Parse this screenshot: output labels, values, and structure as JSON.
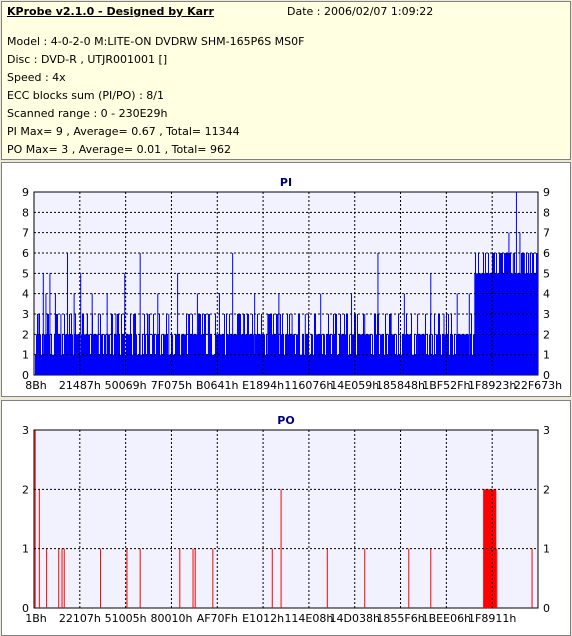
{
  "info": {
    "title": "KProbe v2.1.0 - Designed by Karr",
    "date": "Date : 2006/02/07 1:09:22",
    "model": "Model : 4-0-2-0 M:LITE-ON DVDRW SHM-165P6S MS0F",
    "disc": "Disc : DVD-R , UTJR001001 []",
    "speed": "Speed : 4x",
    "ecc": "ECC blocks sum (PI/PO) : 8/1",
    "range": "Scanned range : 0 - 230E29h",
    "pi_stats": "PI Max= 9 , Average= 0.67 , Total= 11344",
    "po_stats": "PO Max= 3 , Average= 0.01 , Total= 962"
  },
  "colors": {
    "pi": "#0000ff",
    "po": "#ff0000",
    "plot_bg": "#f2f2ff",
    "grid": "#000000"
  },
  "chart_data": [
    {
      "type": "bar",
      "title": "PI",
      "ylim": [
        0,
        9
      ],
      "yticks": [
        0,
        1,
        2,
        3,
        4,
        5,
        6,
        7,
        8,
        9
      ],
      "xlim": [
        0,
        2289267
      ],
      "x_tick_labels": [
        "8Bh",
        "21487h",
        "50069h",
        "7F075h",
        "B0641h",
        "E1894h",
        "116076h",
        "14E059h",
        "185848h",
        "1BF52Fh",
        "1F8923h",
        "22F673h"
      ],
      "grid": true,
      "baseline_level": 2,
      "peaks": [
        {
          "x": 20000,
          "y": 3
        },
        {
          "x": 40000,
          "y": 5
        },
        {
          "x": 52000,
          "y": 4
        },
        {
          "x": 70000,
          "y": 5
        },
        {
          "x": 95000,
          "y": 4
        },
        {
          "x": 120000,
          "y": 3
        },
        {
          "x": 150000,
          "y": 6
        },
        {
          "x": 180000,
          "y": 4
        },
        {
          "x": 210000,
          "y": 5
        },
        {
          "x": 240000,
          "y": 3
        },
        {
          "x": 262000,
          "y": 4
        },
        {
          "x": 290000,
          "y": 3
        },
        {
          "x": 330000,
          "y": 4
        },
        {
          "x": 370000,
          "y": 3
        },
        {
          "x": 410000,
          "y": 5
        },
        {
          "x": 450000,
          "y": 3
        },
        {
          "x": 480000,
          "y": 6
        },
        {
          "x": 520000,
          "y": 3
        },
        {
          "x": 560000,
          "y": 4
        },
        {
          "x": 610000,
          "y": 3
        },
        {
          "x": 650000,
          "y": 5
        },
        {
          "x": 700000,
          "y": 3
        },
        {
          "x": 740000,
          "y": 4
        },
        {
          "x": 790000,
          "y": 3
        },
        {
          "x": 840000,
          "y": 4
        },
        {
          "x": 900000,
          "y": 6
        },
        {
          "x": 950000,
          "y": 3
        },
        {
          "x": 1000000,
          "y": 4
        },
        {
          "x": 1060000,
          "y": 3
        },
        {
          "x": 1110000,
          "y": 4
        },
        {
          "x": 1170000,
          "y": 3
        },
        {
          "x": 1230000,
          "y": 3
        },
        {
          "x": 1300000,
          "y": 4
        },
        {
          "x": 1370000,
          "y": 3
        },
        {
          "x": 1440000,
          "y": 4
        },
        {
          "x": 1500000,
          "y": 3
        },
        {
          "x": 1560000,
          "y": 6
        },
        {
          "x": 1620000,
          "y": 3
        },
        {
          "x": 1680000,
          "y": 4
        },
        {
          "x": 1740000,
          "y": 3
        },
        {
          "x": 1800000,
          "y": 5
        },
        {
          "x": 1860000,
          "y": 3
        },
        {
          "x": 1920000,
          "y": 4
        },
        {
          "x": 1975000,
          "y": 4
        },
        {
          "x": 2000000,
          "y": 5
        },
        {
          "x": 2060000,
          "y": 5
        },
        {
          "x": 2080000,
          "y": 6
        },
        {
          "x": 2100000,
          "y": 5
        },
        {
          "x": 2135000,
          "y": 6
        },
        {
          "x": 2155000,
          "y": 7
        },
        {
          "x": 2175000,
          "y": 6
        },
        {
          "x": 2189000,
          "y": 9
        },
        {
          "x": 2205000,
          "y": 7
        },
        {
          "x": 2225000,
          "y": 6
        },
        {
          "x": 2245000,
          "y": 6
        },
        {
          "x": 2262000,
          "y": 6
        }
      ],
      "high_region": {
        "x_start": 2000000,
        "x_end": 2289267,
        "level": 5
      }
    },
    {
      "type": "bar",
      "title": "PO",
      "ylim": [
        0,
        3
      ],
      "yticks": [
        0,
        1,
        2,
        3
      ],
      "xlim": [
        0,
        2289267
      ],
      "x_tick_labels": [
        "1Bh",
        "22107h",
        "51005h",
        "80010h",
        "AF70Fh",
        "E1012h",
        "114E08h",
        "14D038h",
        "1855F6h",
        "1BEE06h",
        "1F8911h"
      ],
      "grid": true,
      "spikes": [
        {
          "x": 3000,
          "y": 3
        },
        {
          "x": 22000,
          "y": 2
        },
        {
          "x": 55000,
          "y": 1
        },
        {
          "x": 110000,
          "y": 1
        },
        {
          "x": 125000,
          "y": 1
        },
        {
          "x": 135000,
          "y": 1
        },
        {
          "x": 300000,
          "y": 1
        },
        {
          "x": 420000,
          "y": 1
        },
        {
          "x": 480000,
          "y": 1
        },
        {
          "x": 660000,
          "y": 1
        },
        {
          "x": 720000,
          "y": 1
        },
        {
          "x": 730000,
          "y": 1
        },
        {
          "x": 810000,
          "y": 1
        },
        {
          "x": 1080000,
          "y": 1
        },
        {
          "x": 1120000,
          "y": 2
        },
        {
          "x": 1330000,
          "y": 1
        },
        {
          "x": 1500000,
          "y": 1
        },
        {
          "x": 1700000,
          "y": 1
        },
        {
          "x": 1800000,
          "y": 1
        },
        {
          "x": 2050000,
          "y": 2
        },
        {
          "x": 2065000,
          "y": 2
        },
        {
          "x": 2080000,
          "y": 2
        },
        {
          "x": 2100000,
          "y": 1
        },
        {
          "x": 2260000,
          "y": 1
        }
      ],
      "dense_region": {
        "x_start": 2040000,
        "x_end": 2100000,
        "level": 2
      }
    }
  ]
}
